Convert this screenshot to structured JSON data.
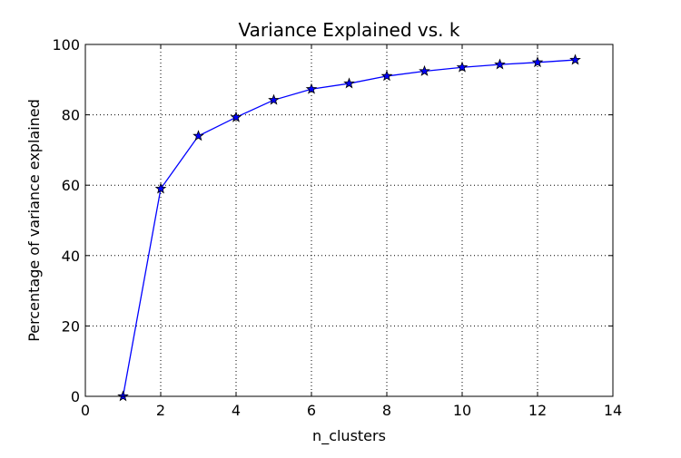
{
  "chart_data": {
    "type": "line",
    "title": "Variance Explained vs. k",
    "xlabel": "n_clusters",
    "ylabel": "Percentage of variance explained",
    "xlim": [
      0,
      14
    ],
    "ylim": [
      0,
      100
    ],
    "x_ticks": [
      0,
      2,
      4,
      6,
      8,
      10,
      12,
      14
    ],
    "y_ticks": [
      0,
      20,
      40,
      60,
      80,
      100
    ],
    "grid": true,
    "grid_style": "dotted",
    "marker": "star",
    "series": [
      {
        "color": "#0000ff",
        "x": [
          1,
          2,
          3,
          4,
          5,
          6,
          7,
          8,
          9,
          10,
          11,
          12,
          13
        ],
        "y": [
          0,
          59,
          74,
          79.3,
          84.2,
          87.3,
          88.9,
          91.0,
          92.4,
          93.5,
          94.3,
          94.9,
          95.6
        ]
      }
    ]
  }
}
